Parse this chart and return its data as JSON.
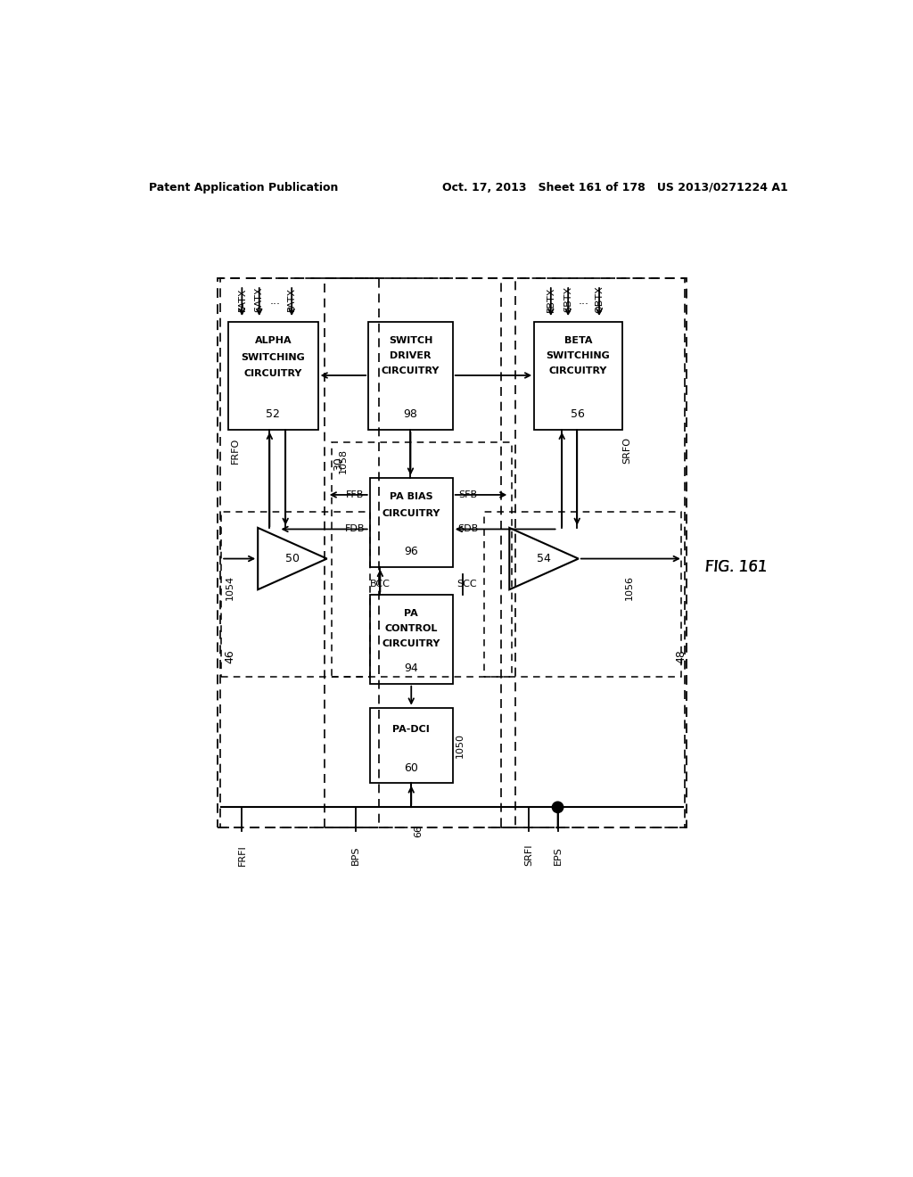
{
  "bg_color": "#ffffff",
  "fig_label": "FIG. 161",
  "header_left": "Patent Application Publication",
  "header_right": "Oct. 17, 2013   Sheet 161 of 178   US 2013/0271224 A1"
}
